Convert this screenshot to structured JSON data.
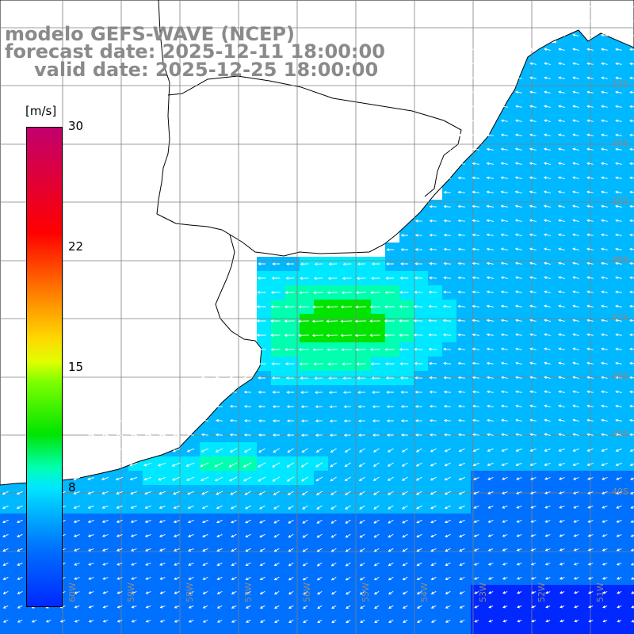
{
  "title": {
    "model": "modelo GEFS-WAVE (NCEP)",
    "forecast": "forecast date: 2025-12-11 18:00:00",
    "valid": "valid date: 2025-12-25 18:00:00"
  },
  "colorbar": {
    "unit": "[m/s]",
    "ticks": [
      "30",
      "22",
      "15",
      "8"
    ],
    "tick_values": [
      30,
      22,
      15,
      8
    ],
    "min": 0,
    "max": 30,
    "colors": [
      "#0028ff",
      "#0070ff",
      "#00b8ff",
      "#00e8ff",
      "#00ffb0",
      "#00e400",
      "#7fff00",
      "#dfff00",
      "#ffd800",
      "#ff8c00",
      "#ff0000",
      "#c2006e"
    ]
  },
  "map": {
    "lon_labels": [
      "60W",
      "59W",
      "58W",
      "57W",
      "56W",
      "55W",
      "54W",
      "53W",
      "52W",
      "51W"
    ],
    "lat_labels": [
      "33S",
      "34S",
      "35S",
      "36S",
      "37S",
      "38S",
      "39S",
      "40S"
    ],
    "grid_color": "#7f7f7f",
    "land_color": "#ffffff",
    "coast_color": "#000000",
    "arrow_color": "#ffffff",
    "field": "wind speed with wind direction arrows"
  }
}
